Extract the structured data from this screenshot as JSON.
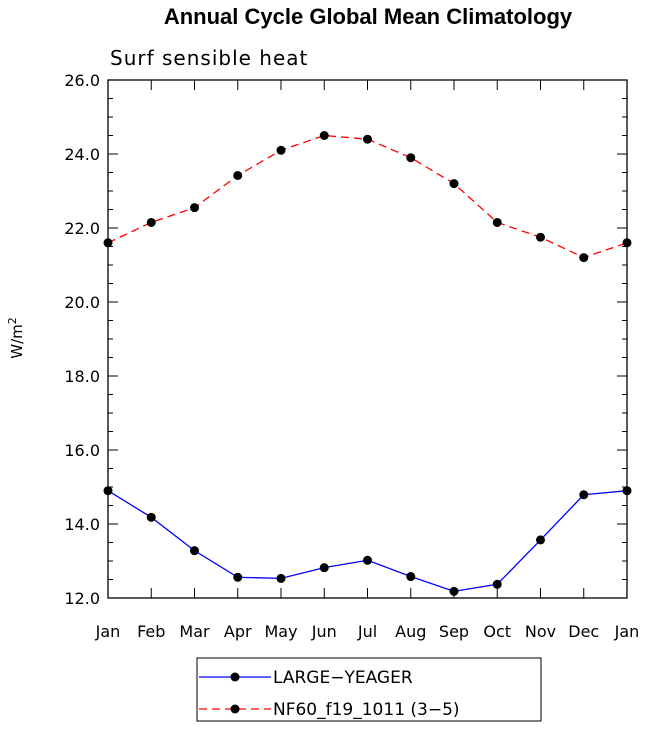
{
  "chart_data": {
    "type": "line",
    "title": "Annual Cycle Global Mean Climatology",
    "subtitle": "Surf sensible heat",
    "ylabel": "W/m",
    "ylabel_sup": "2",
    "xlabel": "",
    "categories": [
      "Jan",
      "Feb",
      "Mar",
      "Apr",
      "May",
      "Jun",
      "Jul",
      "Aug",
      "Sep",
      "Oct",
      "Nov",
      "Dec",
      "Jan"
    ],
    "ylim": [
      12.0,
      26.0
    ],
    "yticks": [
      "12.0",
      "14.0",
      "16.0",
      "18.0",
      "20.0",
      "22.0",
      "24.0",
      "26.0"
    ],
    "yticks_minor_step": 0.5,
    "grid": false,
    "legend_position": "bottom-center",
    "series": [
      {
        "name": "LARGE−YEAGER",
        "color": "#0000ff",
        "dashed": false,
        "values": [
          14.9,
          14.18,
          13.28,
          12.56,
          12.53,
          12.82,
          13.02,
          12.58,
          12.18,
          12.37,
          13.57,
          14.79,
          14.9
        ]
      },
      {
        "name": "NF60_f19_1011 (3−5)",
        "color": "#ff0000",
        "dashed": true,
        "values": [
          21.6,
          22.15,
          22.55,
          23.42,
          24.1,
          24.5,
          24.4,
          23.9,
          23.2,
          22.15,
          21.75,
          21.2,
          21.6
        ]
      }
    ]
  }
}
